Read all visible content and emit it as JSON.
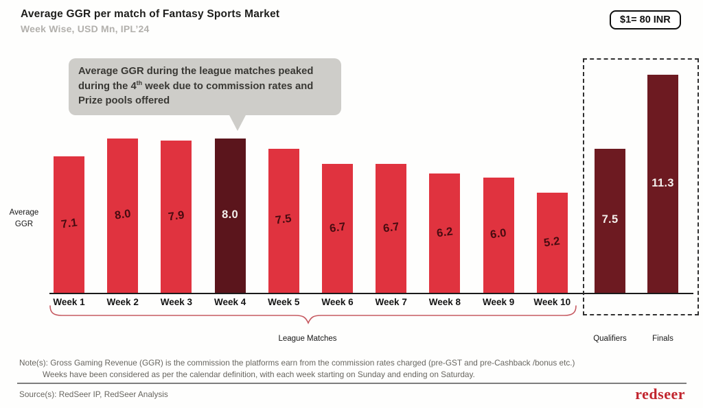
{
  "header": {
    "title": "Average GGR per match of Fantasy Sports Market",
    "subtitle": "Week Wise, USD Mn, IPL’24",
    "exchange_rate_badge": "$1= 80 INR"
  },
  "callout": {
    "text_before": "Average GGR during the league matches peaked during the 4",
    "superscript": "th",
    "text_after": " week due to commission rates and Prize pools offered"
  },
  "chart_data": {
    "type": "bar",
    "title": "Average GGR per match of Fantasy Sports Market",
    "subtitle": "Week Wise, USD Mn, IPL’24",
    "ylabel": "Average GGR",
    "unit": "USD Mn",
    "ylim": [
      0,
      12
    ],
    "grid": false,
    "categories": [
      "Week 1",
      "Week 2",
      "Week 3",
      "Week 4",
      "Week 5",
      "Week 6",
      "Week 7",
      "Week 8",
      "Week 9",
      "Week 10",
      "Qualifiers",
      "Finals"
    ],
    "values": [
      7.1,
      8.0,
      7.9,
      8.0,
      7.5,
      6.7,
      6.7,
      6.2,
      6.0,
      5.2,
      7.5,
      11.3
    ],
    "value_labels": [
      "7.1",
      "8.0",
      "7.9",
      "8.0",
      "7.5",
      "6.7",
      "6.7",
      "6.2",
      "6.0",
      "5.2",
      "7.5",
      "11.3"
    ],
    "color_keys": [
      "red",
      "red",
      "red",
      "dark_week",
      "red",
      "red",
      "red",
      "red",
      "red",
      "red",
      "dark_playoff",
      "dark_playoff"
    ],
    "colors": {
      "default": "#e0333f",
      "highlight_week": "#5b151c",
      "highlight_playoff": "#6d1a21"
    },
    "highlighted": [
      "Week 4",
      "Qualifiers",
      "Finals"
    ],
    "groups": {
      "league": {
        "label": "League Matches",
        "from": 0,
        "to": 9
      },
      "playoffs": {
        "labels": [
          "Qualifiers",
          "Finals"
        ]
      }
    }
  },
  "footer": {
    "notes": [
      "Note(s): Gross Gaming Revenue (GGR) is the commission the platforms earn from the commission rates charged (pre-GST and pre-Cashback /bonus etc.)",
      "Weeks have been considered as per the calendar definition, with each week starting on Sunday and ending on Saturday."
    ],
    "source": "Source(s): RedSeer IP, RedSeer Analysis",
    "logo": "redseer"
  }
}
